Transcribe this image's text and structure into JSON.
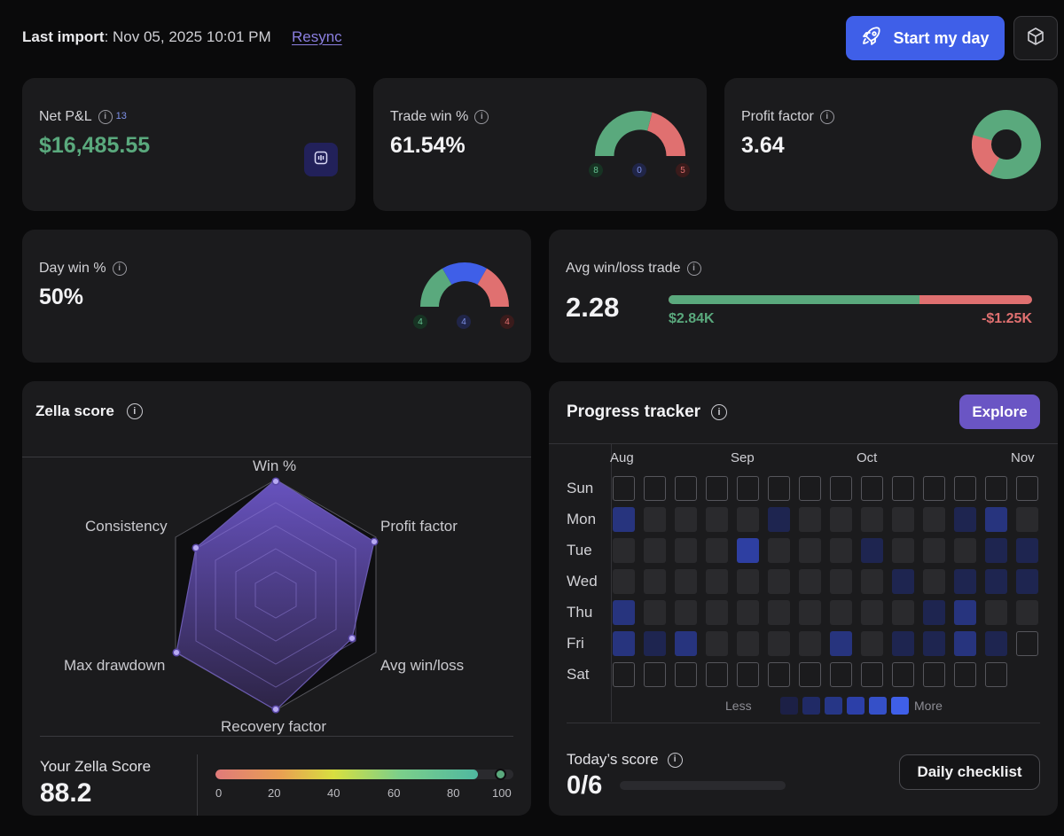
{
  "header": {
    "last_import_label": "Last import",
    "last_import_value": ": Nov 05, 2025 10:01 PM",
    "resync": "Resync",
    "start_button": "Start my day"
  },
  "net_pnl": {
    "label": "Net P&L",
    "count": "13",
    "value": "$16,485.55"
  },
  "trade_win": {
    "label": "Trade win %",
    "value": "61.54%",
    "wins": "8",
    "breakeven": "0",
    "losses": "5"
  },
  "profit_factor": {
    "label": "Profit factor",
    "value": "3.64"
  },
  "day_win": {
    "label": "Day win %",
    "value": "50%",
    "wins": "4",
    "breakeven": "4",
    "losses": "4"
  },
  "avg_win_loss": {
    "label": "Avg win/loss trade",
    "value": "2.28",
    "avg_win": "$2.84K",
    "avg_loss": "-$1.25K",
    "win_share": 0.69
  },
  "zella": {
    "title": "Zella score",
    "axes": [
      "Win %",
      "Profit factor",
      "Avg win/loss",
      "Recovery factor",
      "Max drawdown",
      "Consistency"
    ],
    "your_score_label": "Your Zella Score",
    "score": "88.2",
    "score_value": 88.2,
    "scale_ticks": [
      "0",
      "20",
      "40",
      "60",
      "80",
      "100"
    ]
  },
  "progress": {
    "title": "Progress tracker",
    "explore": "Explore",
    "months": [
      "Aug",
      "Sep",
      "Oct",
      "Nov"
    ],
    "days": [
      "Sun",
      "Mon",
      "Tue",
      "Wed",
      "Thu",
      "Fri",
      "Sat"
    ],
    "legend_less": "Less",
    "legend_more": "More",
    "todays_score_label": "Today’s score",
    "todays_score": "0/6",
    "checklist": "Daily checklist"
  },
  "colors": {
    "green": "#5aa97d",
    "red": "#e07070",
    "blue": "#3f5fe8",
    "purple": "#6a55c4"
  }
}
